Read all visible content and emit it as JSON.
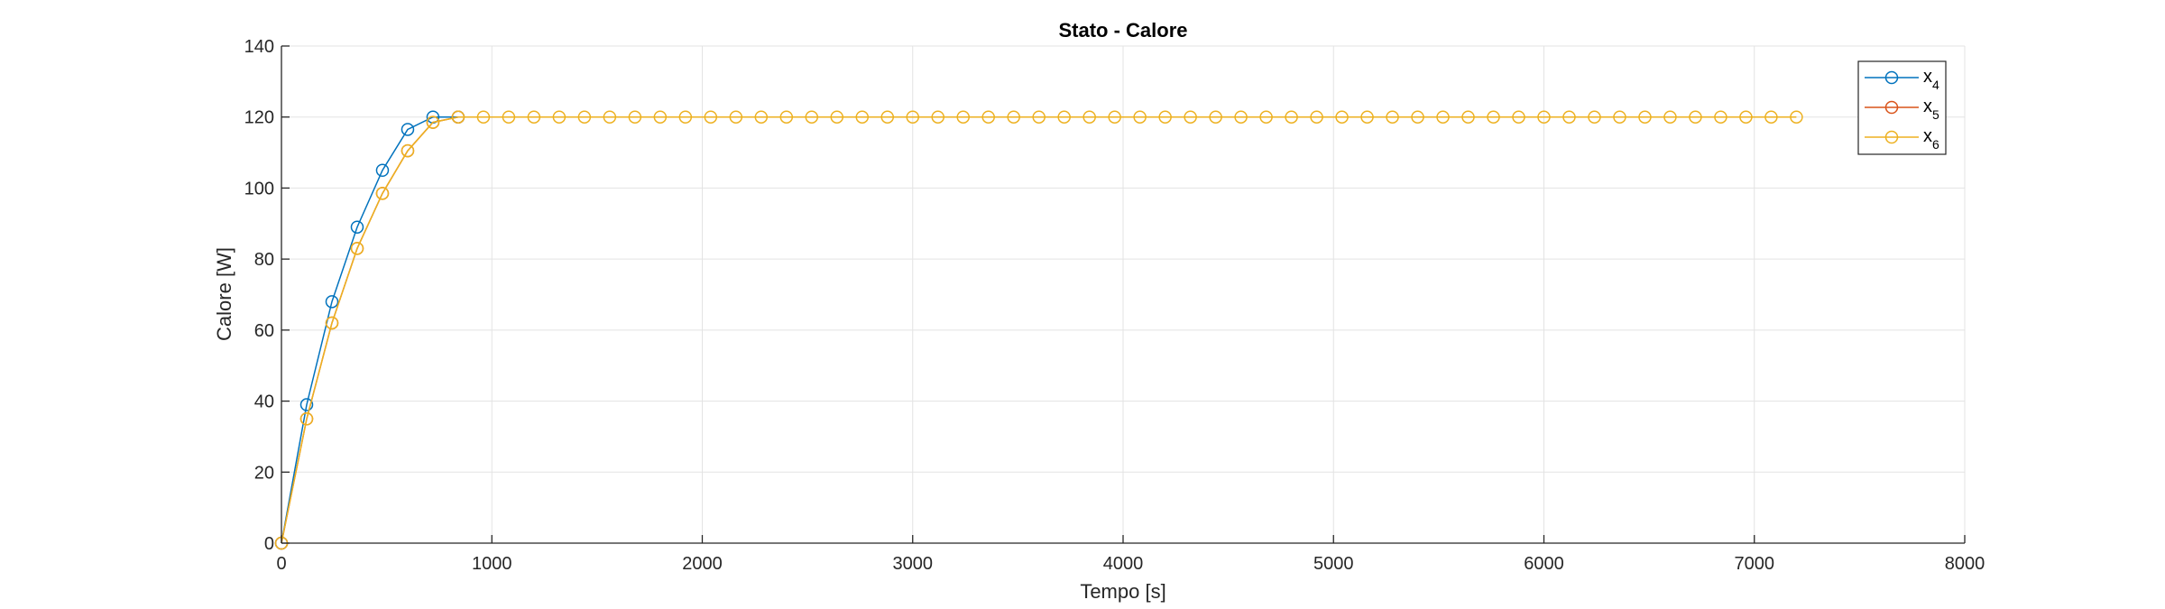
{
  "chart_data": {
    "type": "line",
    "title": "Stato - Calore",
    "xlabel": "Tempo [s]",
    "ylabel": "Calore [W]",
    "xlim": [
      0,
      8000
    ],
    "ylim": [
      0,
      140
    ],
    "xticks": [
      0,
      1000,
      2000,
      3000,
      4000,
      5000,
      6000,
      7000,
      8000
    ],
    "yticks": [
      0,
      20,
      40,
      60,
      80,
      100,
      120,
      140
    ],
    "grid": true,
    "legend_position": "top-right",
    "marker": "circle",
    "series": [
      {
        "name": "x",
        "subscript": "4",
        "color": "#0072BD",
        "x": [
          0,
          120,
          240,
          360,
          480,
          600,
          720,
          840
        ],
        "y": [
          0,
          39,
          68,
          89,
          105,
          116.5,
          120,
          120
        ]
      },
      {
        "name": "x",
        "subscript": "5",
        "color": "#D95319",
        "x": [
          0,
          120,
          240,
          360,
          480,
          600,
          720,
          840
        ],
        "y": [
          0,
          35,
          62,
          83,
          98.5,
          110.5,
          118.5,
          120
        ]
      },
      {
        "name": "x",
        "subscript": "6",
        "color": "#EDB120",
        "x": [
          0,
          120,
          240,
          360,
          480,
          600,
          720,
          840,
          960,
          1080,
          1200,
          1320,
          1440,
          1560,
          1680,
          1800,
          1920,
          2040,
          2160,
          2280,
          2400,
          2520,
          2640,
          2760,
          2880,
          3000,
          3120,
          3240,
          3360,
          3480,
          3600,
          3720,
          3840,
          3960,
          4080,
          4200,
          4320,
          4440,
          4560,
          4680,
          4800,
          4920,
          5040,
          5160,
          5280,
          5400,
          5520,
          5640,
          5760,
          5880,
          6000,
          6120,
          6240,
          6360,
          6480,
          6600,
          6720,
          6840,
          6960,
          7080,
          7200
        ],
        "y": [
          0,
          35,
          62,
          83,
          98.5,
          110.5,
          118.5,
          120,
          120,
          120,
          120,
          120,
          120,
          120,
          120,
          120,
          120,
          120,
          120,
          120,
          120,
          120,
          120,
          120,
          120,
          120,
          120,
          120,
          120,
          120,
          120,
          120,
          120,
          120,
          120,
          120,
          120,
          120,
          120,
          120,
          120,
          120,
          120,
          120,
          120,
          120,
          120,
          120,
          120,
          120,
          120,
          120,
          120,
          120,
          120,
          120,
          120,
          120,
          120,
          120,
          120
        ]
      }
    ]
  }
}
